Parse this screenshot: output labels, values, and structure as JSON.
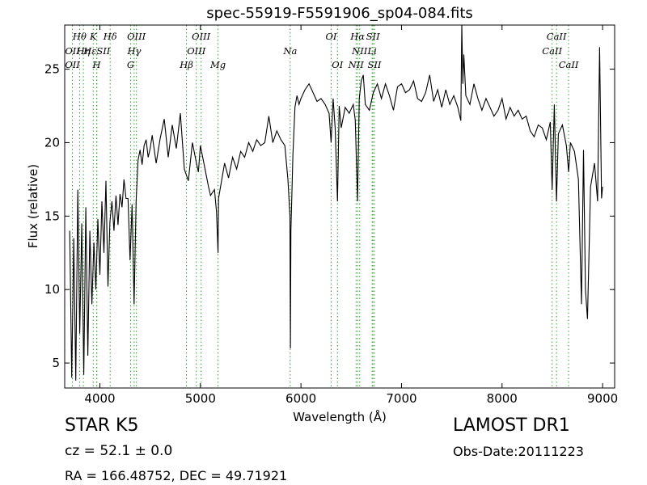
{
  "chart_data": {
    "type": "line",
    "title": "spec-55919-F5591906_sp04-084.fits",
    "xlabel": "Wavelength (Å)",
    "ylabel": "Flux (relative)",
    "xlim": [
      3650,
      9120
    ],
    "ylim": [
      3.3,
      28.0
    ],
    "xticks": [
      4000,
      5000,
      6000,
      7000,
      8000,
      9000
    ],
    "yticks": [
      5,
      10,
      15,
      20,
      25
    ],
    "grid": false,
    "line_color": "#000000",
    "marker_color": "#2ca02c",
    "series": [
      {
        "values": [
          [
            3700,
            14.0
          ],
          [
            3720,
            4.0
          ],
          [
            3740,
            13.5
          ],
          [
            3760,
            3.8
          ],
          [
            3780,
            16.8
          ],
          [
            3800,
            7.0
          ],
          [
            3820,
            14.5
          ],
          [
            3840,
            4.2
          ],
          [
            3860,
            15.6
          ],
          [
            3880,
            5.5
          ],
          [
            3900,
            14.0
          ],
          [
            3920,
            9.0
          ],
          [
            3940,
            13.2
          ],
          [
            3960,
            10.0
          ],
          [
            3980,
            14.8
          ],
          [
            4000,
            11.0
          ],
          [
            4020,
            16.0
          ],
          [
            4040,
            12.5
          ],
          [
            4060,
            17.4
          ],
          [
            4080,
            10.2
          ],
          [
            4100,
            14.6
          ],
          [
            4120,
            16.0
          ],
          [
            4140,
            14.0
          ],
          [
            4160,
            16.4
          ],
          [
            4180,
            14.4
          ],
          [
            4200,
            16.5
          ],
          [
            4220,
            15.6
          ],
          [
            4240,
            17.5
          ],
          [
            4260,
            16.2
          ],
          [
            4280,
            16.2
          ],
          [
            4300,
            12.0
          ],
          [
            4320,
            15.8
          ],
          [
            4340,
            9.0
          ],
          [
            4360,
            16.0
          ],
          [
            4380,
            18.8
          ],
          [
            4400,
            19.5
          ],
          [
            4420,
            18.5
          ],
          [
            4440,
            19.8
          ],
          [
            4460,
            20.2
          ],
          [
            4480,
            19.0
          ],
          [
            4500,
            19.6
          ],
          [
            4520,
            20.5
          ],
          [
            4560,
            18.6
          ],
          [
            4600,
            20.3
          ],
          [
            4640,
            21.6
          ],
          [
            4680,
            19.0
          ],
          [
            4720,
            21.2
          ],
          [
            4760,
            19.6
          ],
          [
            4800,
            22.0
          ],
          [
            4840,
            18.2
          ],
          [
            4880,
            17.4
          ],
          [
            4920,
            20.0
          ],
          [
            4960,
            18.6
          ],
          [
            4980,
            18.0
          ],
          [
            5000,
            19.8
          ],
          [
            5040,
            18.4
          ],
          [
            5080,
            17.0
          ],
          [
            5100,
            16.4
          ],
          [
            5120,
            16.6
          ],
          [
            5140,
            16.8
          ],
          [
            5160,
            15.3
          ],
          [
            5175,
            12.5
          ],
          [
            5180,
            16.2
          ],
          [
            5200,
            17.0
          ],
          [
            5240,
            18.6
          ],
          [
            5280,
            17.6
          ],
          [
            5320,
            19.0
          ],
          [
            5360,
            18.2
          ],
          [
            5400,
            19.4
          ],
          [
            5440,
            19.0
          ],
          [
            5480,
            20.0
          ],
          [
            5520,
            19.4
          ],
          [
            5560,
            20.2
          ],
          [
            5600,
            19.8
          ],
          [
            5640,
            20.0
          ],
          [
            5680,
            21.8
          ],
          [
            5720,
            20.0
          ],
          [
            5760,
            20.8
          ],
          [
            5800,
            20.2
          ],
          [
            5840,
            19.8
          ],
          [
            5870,
            17.5
          ],
          [
            5890,
            15.0
          ],
          [
            5895,
            6.0
          ],
          [
            5900,
            14.0
          ],
          [
            5920,
            19.2
          ],
          [
            5940,
            22.4
          ],
          [
            5960,
            23.2
          ],
          [
            5980,
            22.6
          ],
          [
            6000,
            23.0
          ],
          [
            6040,
            23.6
          ],
          [
            6080,
            24.0
          ],
          [
            6120,
            23.4
          ],
          [
            6160,
            22.8
          ],
          [
            6200,
            23.0
          ],
          [
            6240,
            22.6
          ],
          [
            6280,
            22.0
          ],
          [
            6300,
            20.0
          ],
          [
            6320,
            23.0
          ],
          [
            6340,
            21.0
          ],
          [
            6363,
            16.0
          ],
          [
            6380,
            22.5
          ],
          [
            6400,
            21.0
          ],
          [
            6440,
            22.4
          ],
          [
            6480,
            22.0
          ],
          [
            6520,
            22.6
          ],
          [
            6540,
            21.5
          ],
          [
            6563,
            16.0
          ],
          [
            6580,
            23.0
          ],
          [
            6600,
            24.2
          ],
          [
            6620,
            24.6
          ],
          [
            6640,
            22.6
          ],
          [
            6680,
            22.2
          ],
          [
            6720,
            23.4
          ],
          [
            6760,
            24.0
          ],
          [
            6800,
            23.0
          ],
          [
            6840,
            24.0
          ],
          [
            6880,
            23.2
          ],
          [
            6920,
            22.2
          ],
          [
            6960,
            23.8
          ],
          [
            7000,
            24.0
          ],
          [
            7040,
            23.4
          ],
          [
            7080,
            23.6
          ],
          [
            7120,
            24.2
          ],
          [
            7160,
            23.0
          ],
          [
            7200,
            22.8
          ],
          [
            7240,
            23.4
          ],
          [
            7280,
            24.6
          ],
          [
            7320,
            22.8
          ],
          [
            7360,
            23.6
          ],
          [
            7400,
            22.4
          ],
          [
            7440,
            23.6
          ],
          [
            7480,
            22.6
          ],
          [
            7520,
            23.2
          ],
          [
            7560,
            22.4
          ],
          [
            7590,
            21.5
          ],
          [
            7600,
            28.0
          ],
          [
            7610,
            24.0
          ],
          [
            7620,
            26.0
          ],
          [
            7640,
            23.2
          ],
          [
            7680,
            22.6
          ],
          [
            7720,
            24.0
          ],
          [
            7760,
            23.0
          ],
          [
            7800,
            22.2
          ],
          [
            7840,
            23.0
          ],
          [
            7880,
            22.4
          ],
          [
            7920,
            21.8
          ],
          [
            7960,
            22.2
          ],
          [
            8000,
            23.0
          ],
          [
            8040,
            21.6
          ],
          [
            8080,
            22.4
          ],
          [
            8120,
            21.8
          ],
          [
            8160,
            22.2
          ],
          [
            8200,
            21.6
          ],
          [
            8240,
            21.8
          ],
          [
            8280,
            20.8
          ],
          [
            8320,
            20.4
          ],
          [
            8360,
            21.2
          ],
          [
            8400,
            21.0
          ],
          [
            8440,
            20.2
          ],
          [
            8480,
            21.4
          ],
          [
            8498,
            16.8
          ],
          [
            8520,
            22.6
          ],
          [
            8542,
            16.0
          ],
          [
            8560,
            20.6
          ],
          [
            8600,
            21.2
          ],
          [
            8640,
            19.8
          ],
          [
            8662,
            18.0
          ],
          [
            8680,
            20.0
          ],
          [
            8720,
            19.4
          ],
          [
            8760,
            17.5
          ],
          [
            8790,
            9.0
          ],
          [
            8810,
            19.5
          ],
          [
            8830,
            10.0
          ],
          [
            8850,
            8.0
          ],
          [
            8880,
            17.0
          ],
          [
            8920,
            18.6
          ],
          [
            8950,
            16.0
          ],
          [
            8970,
            26.5
          ],
          [
            8990,
            16.2
          ],
          [
            9000,
            17.0
          ]
        ]
      }
    ],
    "line_ids": [
      {
        "label": "Hθ",
        "x": 3798,
        "row": 0
      },
      {
        "label": "OII",
        "x": 3727,
        "row": 1
      },
      {
        "label": "Hη",
        "x": 3836,
        "row": 1
      },
      {
        "label": "OII",
        "x": 3727,
        "row": 2
      },
      {
        "label": "K",
        "x": 3934,
        "row": 0
      },
      {
        "label": "HεSII",
        "x": 3970,
        "row": 1
      },
      {
        "label": "H",
        "x": 3968,
        "row": 2
      },
      {
        "label": "Hδ",
        "x": 4102,
        "row": 0
      },
      {
        "label": "OIII",
        "x": 4363,
        "row": 0
      },
      {
        "label": "Hγ",
        "x": 4341,
        "row": 1
      },
      {
        "label": "G",
        "x": 4305,
        "row": 2
      },
      {
        "label": "OIII",
        "x": 5007,
        "row": 0
      },
      {
        "label": "OIII",
        "x": 4959,
        "row": 1
      },
      {
        "label": "Hβ",
        "x": 4861,
        "row": 2
      },
      {
        "label": "Mg",
        "x": 5175,
        "row": 2
      },
      {
        "label": "Na",
        "x": 5893,
        "row": 1
      },
      {
        "label": "OI",
        "x": 6300,
        "row": 0
      },
      {
        "label": "OI",
        "x": 6363,
        "row": 2
      },
      {
        "label": "Hα",
        "x": 6563,
        "row": 0
      },
      {
        "label": "SII",
        "x": 6716,
        "row": 0
      },
      {
        "label": "NII",
        "x": 6584,
        "row": 1
      },
      {
        "label": "Li",
        "x": 6708,
        "row": 1
      },
      {
        "label": "NII",
        "x": 6548,
        "row": 2
      },
      {
        "label": "SII",
        "x": 6731,
        "row": 2
      },
      {
        "label": "CaII",
        "x": 8542,
        "row": 0
      },
      {
        "label": "CaII",
        "x": 8498,
        "row": 1
      },
      {
        "label": "CaII",
        "x": 8662,
        "row": 2
      }
    ]
  },
  "info": {
    "class": "STAR   K5",
    "survey": "LAMOST DR1",
    "cz": "cz = 52.1 ± 0.0",
    "obs_date": "Obs-Date:20111223",
    "radec": "RA = 166.48752, DEC = 49.71921"
  }
}
